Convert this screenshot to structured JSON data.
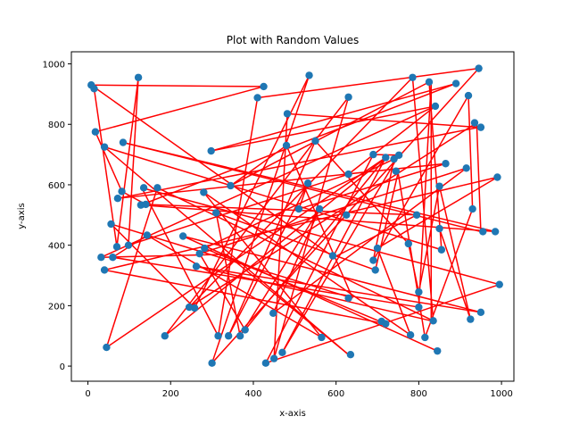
{
  "chart_data": {
    "type": "scatter",
    "title": "Plot with Random Values",
    "xlabel": "x-axis",
    "ylabel": "y-axis",
    "xlim": [
      -40,
      1030
    ],
    "ylim": [
      -50,
      1040
    ],
    "xticks": [
      0,
      200,
      400,
      600,
      800,
      1000
    ],
    "yticks": [
      0,
      200,
      400,
      600,
      800,
      1000
    ],
    "grid": false,
    "line_color": "#ff0000",
    "marker_color": "#1f77b4",
    "points": [
      [
        8,
        930
      ],
      [
        15,
        918
      ],
      [
        18,
        775
      ],
      [
        40,
        725
      ],
      [
        56,
        470
      ],
      [
        70,
        395
      ],
      [
        72,
        555
      ],
      [
        82,
        578
      ],
      [
        85,
        740
      ],
      [
        32,
        360
      ],
      [
        40,
        318
      ],
      [
        60,
        360
      ],
      [
        45,
        62
      ],
      [
        98,
        400
      ],
      [
        122,
        955
      ],
      [
        128,
        533
      ],
      [
        135,
        590
      ],
      [
        140,
        535
      ],
      [
        143,
        433
      ],
      [
        168,
        590
      ],
      [
        186,
        100
      ],
      [
        230,
        430
      ],
      [
        245,
        195
      ],
      [
        258,
        192
      ],
      [
        262,
        330
      ],
      [
        270,
        372
      ],
      [
        280,
        575
      ],
      [
        282,
        390
      ],
      [
        298,
        712
      ],
      [
        300,
        10
      ],
      [
        310,
        507
      ],
      [
        315,
        100
      ],
      [
        340,
        100
      ],
      [
        345,
        597
      ],
      [
        368,
        100
      ],
      [
        380,
        120
      ],
      [
        410,
        888
      ],
      [
        425,
        925
      ],
      [
        430,
        10
      ],
      [
        448,
        175
      ],
      [
        450,
        25
      ],
      [
        470,
        45
      ],
      [
        480,
        730
      ],
      [
        482,
        835
      ],
      [
        510,
        520
      ],
      [
        532,
        605
      ],
      [
        535,
        962
      ],
      [
        550,
        745
      ],
      [
        560,
        520
      ],
      [
        565,
        95
      ],
      [
        592,
        365
      ],
      [
        625,
        500
      ],
      [
        630,
        635
      ],
      [
        630,
        890
      ],
      [
        630,
        225
      ],
      [
        635,
        38
      ],
      [
        690,
        700
      ],
      [
        690,
        350
      ],
      [
        695,
        318
      ],
      [
        700,
        390
      ],
      [
        710,
        148
      ],
      [
        720,
        140
      ],
      [
        720,
        690
      ],
      [
        740,
        685
      ],
      [
        745,
        645
      ],
      [
        752,
        698
      ],
      [
        775,
        405
      ],
      [
        780,
        103
      ],
      [
        785,
        955
      ],
      [
        795,
        500
      ],
      [
        800,
        195
      ],
      [
        800,
        245
      ],
      [
        815,
        95
      ],
      [
        825,
        940
      ],
      [
        835,
        150
      ],
      [
        840,
        860
      ],
      [
        845,
        50
      ],
      [
        850,
        595
      ],
      [
        850,
        455
      ],
      [
        855,
        385
      ],
      [
        865,
        670
      ],
      [
        890,
        935
      ],
      [
        915,
        655
      ],
      [
        920,
        895
      ],
      [
        925,
        155
      ],
      [
        930,
        520
      ],
      [
        935,
        805
      ],
      [
        945,
        985
      ],
      [
        950,
        178
      ],
      [
        950,
        790
      ],
      [
        955,
        445
      ],
      [
        985,
        445
      ],
      [
        990,
        625
      ],
      [
        995,
        270
      ]
    ],
    "segments": [
      [
        [
          8,
          930
        ],
        [
          425,
          925
        ]
      ],
      [
        [
          425,
          925
        ],
        [
          18,
          775
        ]
      ],
      [
        [
          18,
          775
        ],
        [
          82,
          578
        ]
      ],
      [
        [
          82,
          578
        ],
        [
          140,
          535
        ]
      ],
      [
        [
          140,
          535
        ],
        [
          795,
          500
        ]
      ],
      [
        [
          795,
          500
        ],
        [
          595,
          360
        ]
      ],
      [
        [
          595,
          360
        ],
        [
          8,
          930
        ]
      ],
      [
        [
          15,
          918
        ],
        [
          70,
          395
        ]
      ],
      [
        [
          70,
          395
        ],
        [
          122,
          955
        ]
      ],
      [
        [
          122,
          955
        ],
        [
          98,
          400
        ]
      ],
      [
        [
          98,
          400
        ],
        [
          630,
          635
        ]
      ],
      [
        [
          630,
          635
        ],
        [
          840,
          860
        ]
      ],
      [
        [
          840,
          860
        ],
        [
          32,
          360
        ]
      ],
      [
        [
          32,
          360
        ],
        [
          335,
          370
        ]
      ],
      [
        [
          335,
          370
        ],
        [
          630,
          38
        ]
      ],
      [
        [
          630,
          38
        ],
        [
          40,
          725
        ]
      ],
      [
        [
          40,
          725
        ],
        [
          855,
          385
        ]
      ],
      [
        [
          855,
          385
        ],
        [
          825,
          940
        ]
      ],
      [
        [
          825,
          940
        ],
        [
          345,
          597
        ]
      ],
      [
        [
          345,
          597
        ],
        [
          480,
          730
        ]
      ],
      [
        [
          480,
          730
        ],
        [
          640,
          225
        ]
      ],
      [
        [
          640,
          225
        ],
        [
          56,
          470
        ]
      ],
      [
        [
          56,
          470
        ],
        [
          258,
          192
        ]
      ],
      [
        [
          258,
          192
        ],
        [
          535,
          962
        ]
      ],
      [
        [
          535,
          962
        ],
        [
          300,
          10
        ]
      ],
      [
        [
          300,
          10
        ],
        [
          945,
          985
        ]
      ],
      [
        [
          945,
          985
        ],
        [
          410,
          888
        ]
      ],
      [
        [
          410,
          888
        ],
        [
          315,
          100
        ]
      ],
      [
        [
          315,
          100
        ],
        [
          130,
          590
        ]
      ],
      [
        [
          130,
          590
        ],
        [
          995,
          270
        ]
      ],
      [
        [
          995,
          270
        ],
        [
          430,
          10
        ]
      ],
      [
        [
          430,
          10
        ],
        [
          690,
          700
        ]
      ],
      [
        [
          690,
          700
        ],
        [
          752,
          698
        ]
      ],
      [
        [
          752,
          698
        ],
        [
          470,
          45
        ]
      ],
      [
        [
          470,
          45
        ],
        [
          720,
          690
        ]
      ],
      [
        [
          720,
          690
        ],
        [
          45,
          62
        ]
      ],
      [
        [
          45,
          62
        ],
        [
          168,
          590
        ]
      ],
      [
        [
          168,
          590
        ],
        [
          835,
          150
        ]
      ],
      [
        [
          835,
          150
        ],
        [
          785,
          955
        ]
      ],
      [
        [
          785,
          955
        ],
        [
          245,
          195
        ]
      ],
      [
        [
          245,
          195
        ],
        [
          940,
          805
        ]
      ],
      [
        [
          940,
          805
        ],
        [
          950,
          445
        ]
      ],
      [
        [
          950,
          445
        ],
        [
          85,
          740
        ]
      ],
      [
        [
          85,
          740
        ],
        [
          985,
          445
        ]
      ],
      [
        [
          985,
          445
        ],
        [
          128,
          533
        ]
      ],
      [
        [
          128,
          533
        ],
        [
          890,
          935
        ]
      ],
      [
        [
          890,
          935
        ],
        [
          298,
          712
        ]
      ],
      [
        [
          298,
          712
        ],
        [
          840,
          860
        ]
      ],
      [
        [
          845,
          50
        ],
        [
          230,
          430
        ]
      ],
      [
        [
          230,
          430
        ],
        [
          950,
          178
        ]
      ],
      [
        [
          950,
          178
        ],
        [
          262,
          330
        ]
      ],
      [
        [
          262,
          330
        ],
        [
          830,
          150
        ]
      ],
      [
        [
          830,
          150
        ],
        [
          830,
          940
        ]
      ],
      [
        [
          830,
          940
        ],
        [
          800,
          195
        ]
      ],
      [
        [
          800,
          195
        ],
        [
          60,
          360
        ]
      ],
      [
        [
          60,
          360
        ],
        [
          143,
          433
        ]
      ],
      [
        [
          143,
          433
        ],
        [
          565,
          95
        ]
      ],
      [
        [
          565,
          95
        ],
        [
          280,
          575
        ]
      ],
      [
        [
          280,
          575
        ],
        [
          780,
          103
        ]
      ],
      [
        [
          780,
          103
        ],
        [
          700,
          390
        ]
      ],
      [
        [
          700,
          390
        ],
        [
          990,
          625
        ]
      ],
      [
        [
          990,
          625
        ],
        [
          40,
          318
        ]
      ],
      [
        [
          40,
          318
        ],
        [
          720,
          140
        ]
      ],
      [
        [
          720,
          140
        ],
        [
          282,
          390
        ]
      ],
      [
        [
          282,
          390
        ],
        [
          740,
          685
        ]
      ],
      [
        [
          740,
          685
        ],
        [
          690,
          350
        ]
      ],
      [
        [
          690,
          350
        ],
        [
          920,
          895
        ]
      ],
      [
        [
          920,
          895
        ],
        [
          930,
          520
        ]
      ],
      [
        [
          930,
          520
        ],
        [
          815,
          95
        ]
      ],
      [
        [
          815,
          95
        ],
        [
          750,
          640
        ]
      ],
      [
        [
          750,
          640
        ],
        [
          695,
          318
        ]
      ],
      [
        [
          695,
          318
        ],
        [
          310,
          507
        ]
      ],
      [
        [
          310,
          507
        ],
        [
          368,
          100
        ]
      ],
      [
        [
          368,
          100
        ],
        [
          560,
          520
        ]
      ],
      [
        [
          560,
          520
        ],
        [
          448,
          175
        ]
      ],
      [
        [
          448,
          175
        ],
        [
          915,
          655
        ]
      ],
      [
        [
          915,
          655
        ],
        [
          270,
          372
        ]
      ],
      [
        [
          270,
          372
        ],
        [
          380,
          120
        ]
      ],
      [
        [
          380,
          120
        ],
        [
          720,
          690
        ]
      ],
      [
        [
          720,
          690
        ],
        [
          186,
          100
        ]
      ],
      [
        [
          186,
          100
        ],
        [
          630,
          890
        ]
      ],
      [
        [
          630,
          890
        ],
        [
          450,
          25
        ]
      ],
      [
        [
          450,
          25
        ],
        [
          482,
          835
        ]
      ],
      [
        [
          482,
          835
        ],
        [
          945,
          790
        ]
      ],
      [
        [
          945,
          790
        ],
        [
          72,
          555
        ]
      ],
      [
        [
          72,
          555
        ],
        [
          865,
          670
        ]
      ],
      [
        [
          865,
          670
        ],
        [
          510,
          520
        ]
      ],
      [
        [
          510,
          520
        ],
        [
          532,
          605
        ]
      ],
      [
        [
          532,
          605
        ],
        [
          340,
          100
        ]
      ],
      [
        [
          340,
          100
        ],
        [
          550,
          745
        ]
      ],
      [
        [
          550,
          745
        ],
        [
          775,
          405
        ]
      ],
      [
        [
          775,
          405
        ],
        [
          800,
          245
        ]
      ],
      [
        [
          800,
          245
        ],
        [
          850,
          595
        ]
      ],
      [
        [
          850,
          595
        ],
        [
          925,
          155
        ]
      ],
      [
        [
          925,
          155
        ],
        [
          850,
          455
        ]
      ]
    ]
  }
}
